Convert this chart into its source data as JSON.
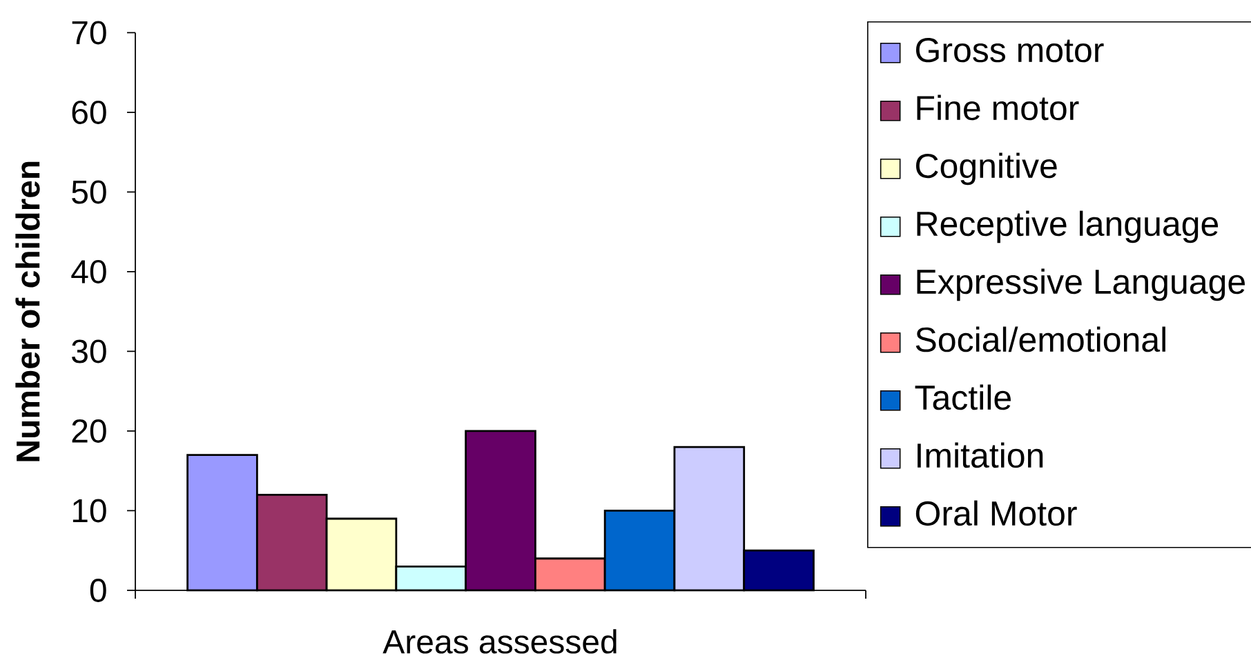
{
  "chart_data": {
    "type": "bar",
    "xlabel": "Areas assessed",
    "ylabel": "Number of children",
    "categories": [
      null
    ],
    "series": [
      {
        "name": "Gross motor",
        "color": "#9999ff",
        "values": [
          17
        ]
      },
      {
        "name": "Fine motor",
        "color": "#993366",
        "values": [
          12
        ]
      },
      {
        "name": "Cognitive",
        "color": "#ffffcc",
        "values": [
          9
        ]
      },
      {
        "name": "Receptive language",
        "color": "#ccffff",
        "values": [
          3
        ]
      },
      {
        "name": "Expressive Language",
        "color": "#660066",
        "values": [
          20
        ]
      },
      {
        "name": "Social/emotional",
        "color": "#ff8080",
        "values": [
          4
        ]
      },
      {
        "name": "Tactile",
        "color": "#0066cc",
        "values": [
          10
        ]
      },
      {
        "name": "Imitation",
        "color": "#ccccff",
        "values": [
          18
        ]
      },
      {
        "name": "Oral Motor",
        "color": "#000080",
        "values": [
          5
        ]
      }
    ],
    "ylim": [
      0,
      70
    ],
    "yticks": [
      0,
      10,
      20,
      30,
      40,
      50,
      60,
      70
    ],
    "legend": "right"
  }
}
